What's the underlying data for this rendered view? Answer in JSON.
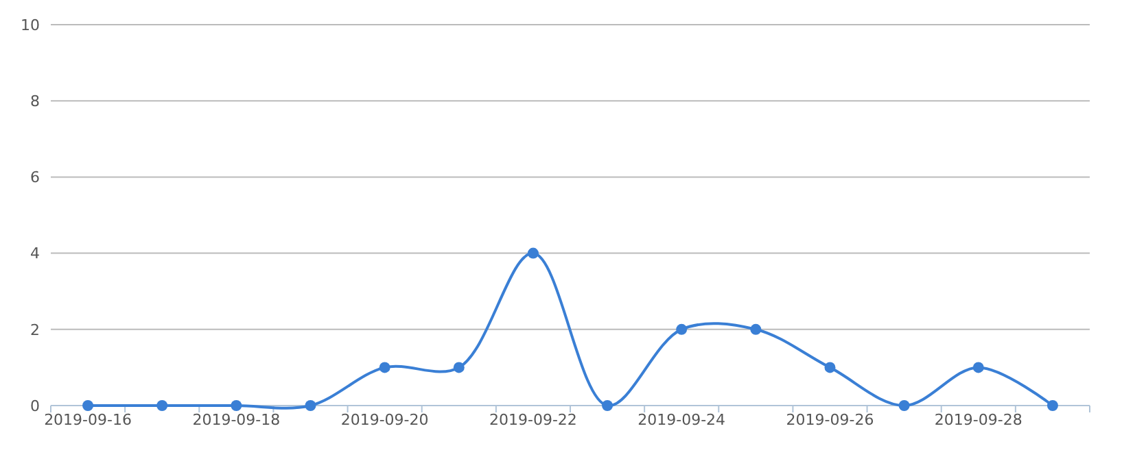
{
  "chart_data": {
    "type": "line",
    "categories": [
      "2019-09-16",
      null,
      "2019-09-18",
      null,
      "2019-09-20",
      null,
      "2019-09-22",
      null,
      "2019-09-24",
      null,
      "2019-09-26",
      null,
      "2019-09-28",
      null
    ],
    "series": [
      {
        "color": "#3a7fd5",
        "values": [
          0,
          0,
          0,
          0,
          1,
          1,
          4,
          0,
          2,
          2,
          1,
          0,
          1,
          0
        ]
      }
    ],
    "ylim": [
      0,
      10
    ],
    "yticks": [
      0,
      2,
      4,
      6,
      8,
      10
    ],
    "grid": "y",
    "marker": "circle",
    "line_style": "solid"
  }
}
